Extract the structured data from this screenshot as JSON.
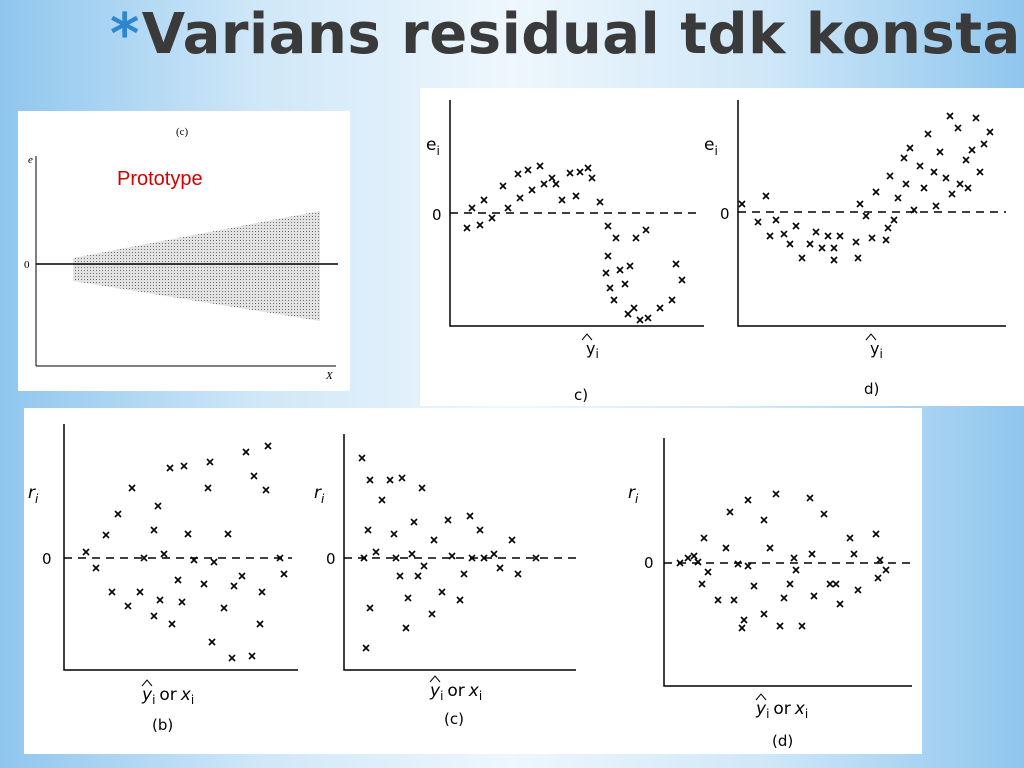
{
  "title": {
    "star": "*",
    "text": "Varians residual tdk konstan"
  },
  "prototype_panel": {
    "caption": "(c)",
    "y_label": "e",
    "zero_label": "0",
    "x_label": "X",
    "overlay_label": "Prototype"
  },
  "top_right_panel": {
    "y_label": "e",
    "y_subscript": "i",
    "zero_label": "0",
    "x_label": "y",
    "x_subscript": "i",
    "captions": [
      "c)",
      "d)"
    ]
  },
  "bottom_panel": {
    "y_label": "r",
    "y_subscript": "i",
    "zero_label": "0",
    "x_label_prefix": "y",
    "x_label_or": "or",
    "x_label_x": "x",
    "subscript": "i",
    "captions": [
      "(b)",
      "(c)",
      "(d)"
    ]
  },
  "colors": {
    "star": "#2e86d1",
    "prototype_label": "#d40000",
    "title": "#3a3a3a"
  }
}
